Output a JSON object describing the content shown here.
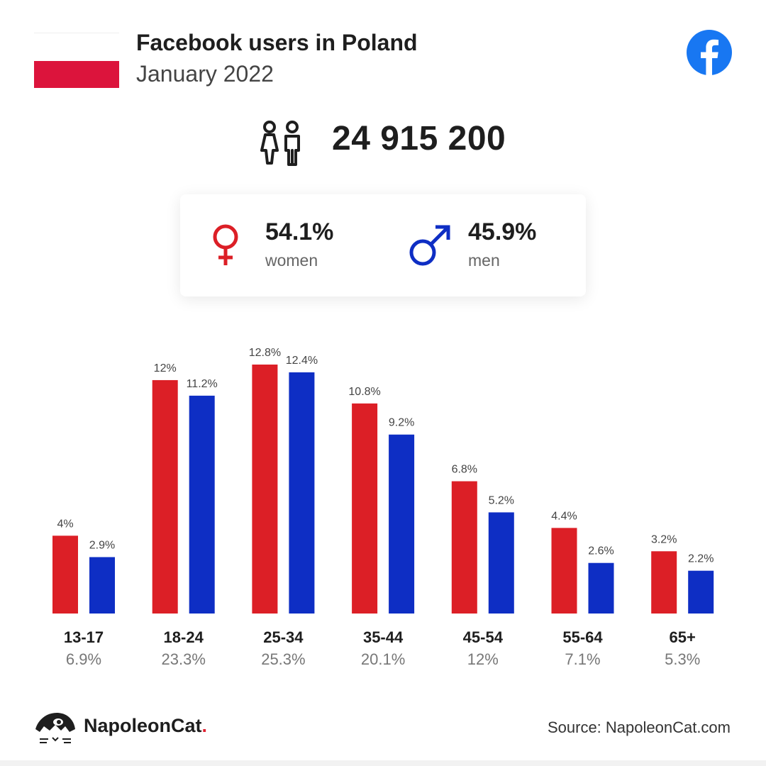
{
  "header": {
    "title": "Facebook users in Poland",
    "subtitle": "January 2022",
    "flag_colors": [
      "#ffffff",
      "#dc143c"
    ],
    "brand_icon": "facebook-icon",
    "brand_color": "#1877f2"
  },
  "summary": {
    "total_icon": "people-icon",
    "total": "24 915 200",
    "women": {
      "icon": "female-symbol-icon",
      "percent": "54.1%",
      "label": "women",
      "color": "#dc1f26"
    },
    "men": {
      "icon": "male-symbol-icon",
      "percent": "45.9%",
      "label": "men",
      "color": "#0e2ec4"
    }
  },
  "chart_data": {
    "type": "bar",
    "categories": [
      "13-17",
      "18-24",
      "25-34",
      "35-44",
      "45-54",
      "55-64",
      "65+"
    ],
    "totals": [
      "6.9%",
      "23.3%",
      "25.3%",
      "20.1%",
      "12%",
      "7.1%",
      "5.3%"
    ],
    "series": [
      {
        "values": [
          4,
          12,
          12.8,
          10.8,
          6.8,
          4.4,
          3.2
        ],
        "labels": [
          "4%",
          "12%",
          "12.8%",
          "10.8%",
          "6.8%",
          "4.4%",
          "3.2%"
        ],
        "color": "#dc1f26"
      },
      {
        "values": [
          2.9,
          11.2,
          12.4,
          9.2,
          5.2,
          2.6,
          2.2
        ],
        "labels": [
          "2.9%",
          "11.2%",
          "12.4%",
          "9.2%",
          "5.2%",
          "2.6%",
          "2.2%"
        ],
        "color": "#0e2ec4"
      }
    ],
    "ylim": [
      0,
      12.8
    ],
    "grid": false,
    "legend": "none"
  },
  "footer": {
    "brand": "NapoleonCat",
    "brand_dot": ".",
    "logo_icon": "napoleoncat-logo-icon",
    "source": "Source: NapoleonCat.com"
  }
}
